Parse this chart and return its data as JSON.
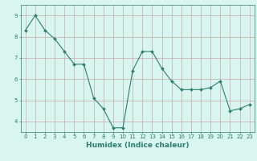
{
  "x": [
    0,
    1,
    2,
    3,
    4,
    5,
    6,
    7,
    8,
    9,
    10,
    11,
    12,
    13,
    14,
    15,
    16,
    17,
    18,
    19,
    20,
    21,
    22,
    23
  ],
  "y": [
    8.3,
    9.0,
    8.3,
    7.9,
    7.3,
    6.7,
    6.7,
    5.1,
    4.6,
    3.7,
    3.7,
    6.4,
    7.3,
    7.3,
    6.5,
    5.9,
    5.5,
    5.5,
    5.5,
    5.6,
    5.9,
    4.5,
    4.6,
    4.8
  ],
  "line_color": "#2e7d6e",
  "marker": "D",
  "marker_size": 2.0,
  "bg_color": "#d8f5f0",
  "grid_color_h": "#c8a8a8",
  "grid_color_v": "#c8a8a8",
  "xlabel": "Humidex (Indice chaleur)",
  "ylim": [
    3.5,
    9.5
  ],
  "xlim": [
    -0.5,
    23.5
  ],
  "yticks": [
    4,
    5,
    6,
    7,
    8,
    9
  ],
  "xticks": [
    0,
    1,
    2,
    3,
    4,
    5,
    6,
    7,
    8,
    9,
    10,
    11,
    12,
    13,
    14,
    15,
    16,
    17,
    18,
    19,
    20,
    21,
    22,
    23
  ],
  "tick_fontsize": 5.0,
  "xlabel_fontsize": 6.5,
  "line_width": 0.8
}
